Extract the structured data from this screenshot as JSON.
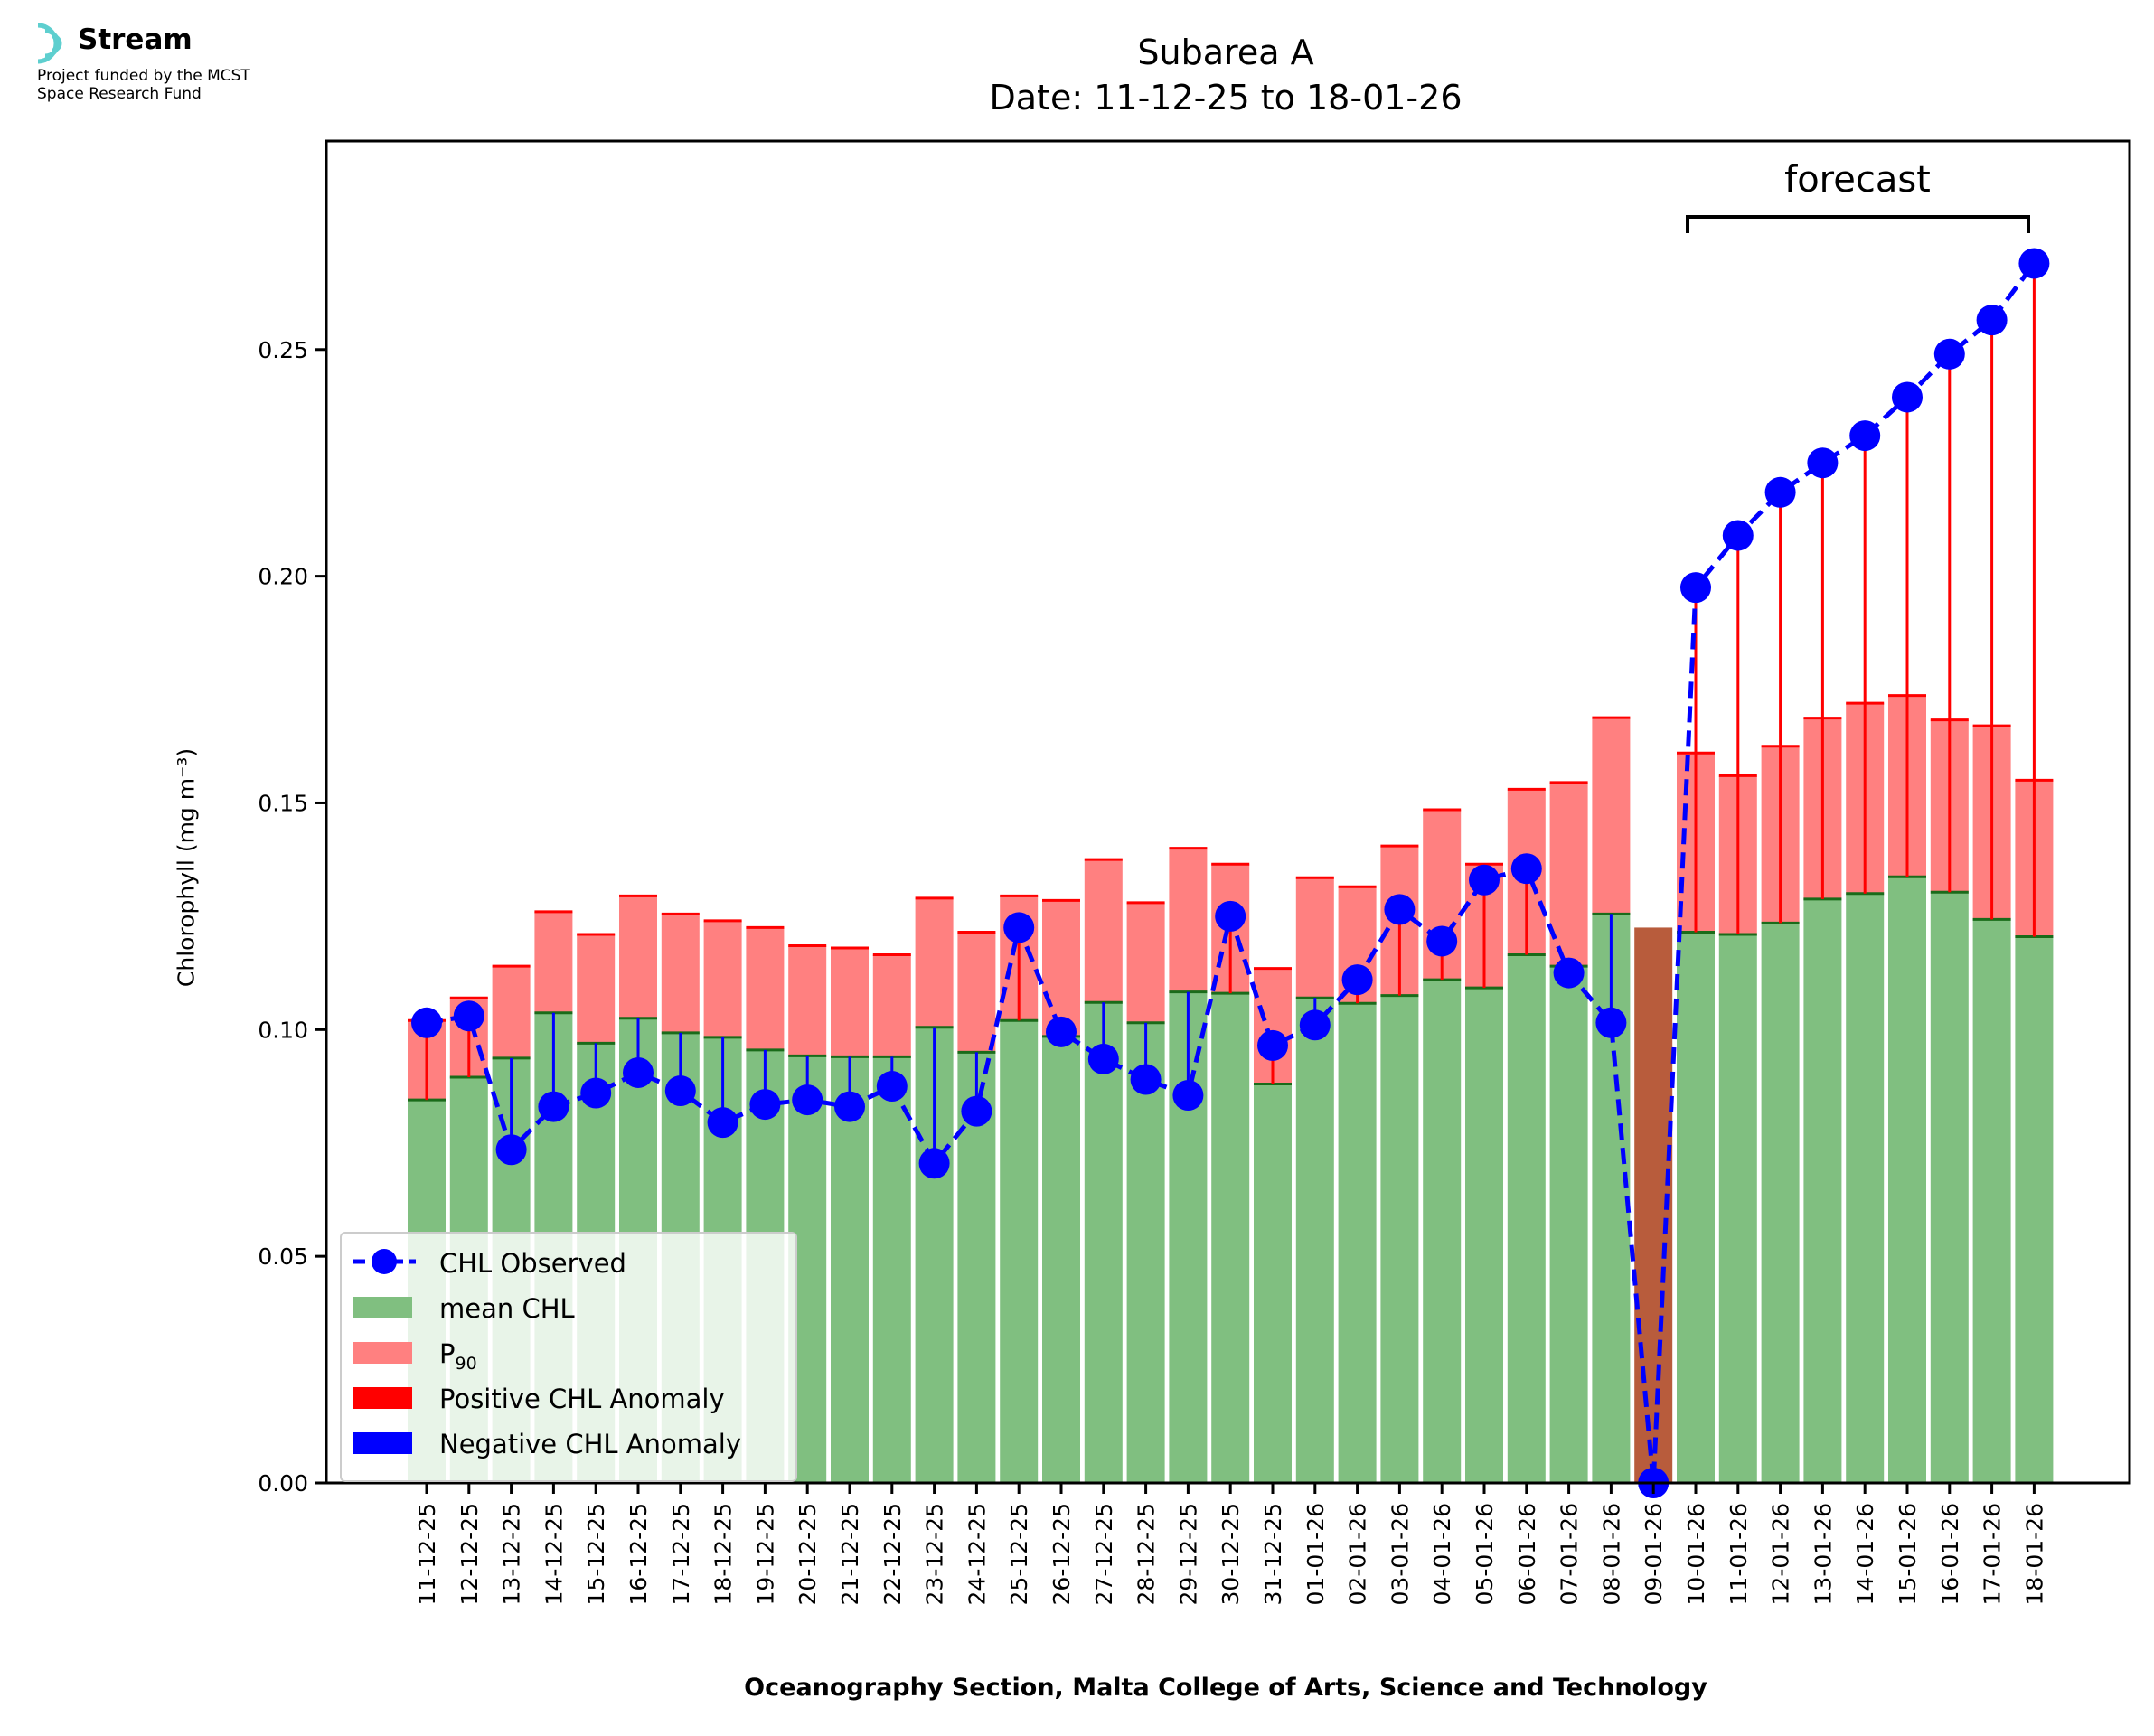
{
  "logo": {
    "name": "Stream",
    "line1": "Project funded by the MCST",
    "line2": "Space Research Fund"
  },
  "title": {
    "line1": "Subarea A",
    "line2": "Date: 11-12-25 to 18-01-26"
  },
  "annotation": "forecast",
  "colors": {
    "mean": "#80bf80",
    "p90": "#ff8080",
    "positive": "#ff0000",
    "negative": "#0000ff",
    "observed": "#0000ff",
    "nodata": "#b85c3c"
  },
  "legend": {
    "observed": "CHL Observed",
    "mean": "mean CHL",
    "p90": "P",
    "p90_sub": "90",
    "positive": "Positive CHL Anomaly",
    "negative": "Negative CHL Anomaly"
  },
  "chart_data": {
    "type": "bar",
    "xlabel": "Oceanography Section, Malta College of Arts, Science and Technology",
    "ylabel": "Chlorophyll (mg m⁻³)",
    "ylim": [
      0,
      0.296
    ],
    "yticks": [
      "0.00",
      "0.05",
      "0.10",
      "0.15",
      "0.20",
      "0.25"
    ],
    "categories": [
      "11-12-25",
      "12-12-25",
      "13-12-25",
      "14-12-25",
      "15-12-25",
      "16-12-25",
      "17-12-25",
      "18-12-25",
      "19-12-25",
      "20-12-25",
      "21-12-25",
      "22-12-25",
      "23-12-25",
      "24-12-25",
      "25-12-25",
      "26-12-25",
      "27-12-25",
      "28-12-25",
      "29-12-25",
      "30-12-25",
      "31-12-25",
      "01-01-26",
      "02-01-26",
      "03-01-26",
      "04-01-26",
      "05-01-26",
      "06-01-26",
      "07-01-26",
      "08-01-26",
      "09-01-26",
      "10-01-26",
      "11-01-26",
      "12-01-26",
      "13-01-26",
      "14-01-26",
      "15-01-26",
      "16-01-26",
      "17-01-26",
      "18-01-26"
    ],
    "series": [
      {
        "name": "mean CHL",
        "values": [
          0.0845,
          0.0895,
          0.0937,
          0.1037,
          0.097,
          0.1025,
          0.0993,
          0.0983,
          0.0955,
          0.0942,
          0.094,
          0.094,
          0.1005,
          0.095,
          0.102,
          0.0985,
          0.106,
          0.1015,
          0.1083,
          0.108,
          0.088,
          0.107,
          0.1058,
          0.1075,
          0.111,
          0.1092,
          0.1165,
          0.114,
          0.1255,
          0.122,
          0.1215,
          0.121,
          0.1235,
          0.1288,
          0.13,
          0.1337,
          0.1303,
          0.1243,
          0.1205
        ]
      },
      {
        "name": "P90",
        "values": [
          0.102,
          0.107,
          0.114,
          0.126,
          0.121,
          0.1295,
          0.1255,
          0.124,
          0.1225,
          0.1185,
          0.118,
          0.1165,
          0.129,
          0.1215,
          0.1295,
          0.1285,
          0.1375,
          0.128,
          0.14,
          0.1365,
          0.1135,
          0.1335,
          0.1315,
          0.1405,
          0.1485,
          0.1365,
          0.153,
          0.1545,
          0.1688,
          0.1225,
          0.161,
          0.156,
          0.1625,
          0.1687,
          0.172,
          0.1737,
          0.1683,
          0.167,
          0.155
        ]
      },
      {
        "name": "CHL Observed",
        "values": [
          0.1015,
          0.103,
          0.0735,
          0.083,
          0.086,
          0.0905,
          0.0865,
          0.0795,
          0.0835,
          0.0845,
          0.083,
          0.0875,
          0.0705,
          0.082,
          0.1225,
          0.0995,
          0.0935,
          0.089,
          0.0855,
          0.125,
          0.0965,
          0.101,
          0.111,
          0.1265,
          0.1195,
          0.133,
          0.1355,
          0.1125,
          0.1015,
          0.0,
          0.1975,
          0.209,
          0.2185,
          0.225,
          0.231,
          0.2395,
          0.249,
          0.2565,
          0.269
        ]
      }
    ],
    "missing_index": 29,
    "forecast_range": [
      "10-01-26",
      "18-01-26"
    ]
  }
}
